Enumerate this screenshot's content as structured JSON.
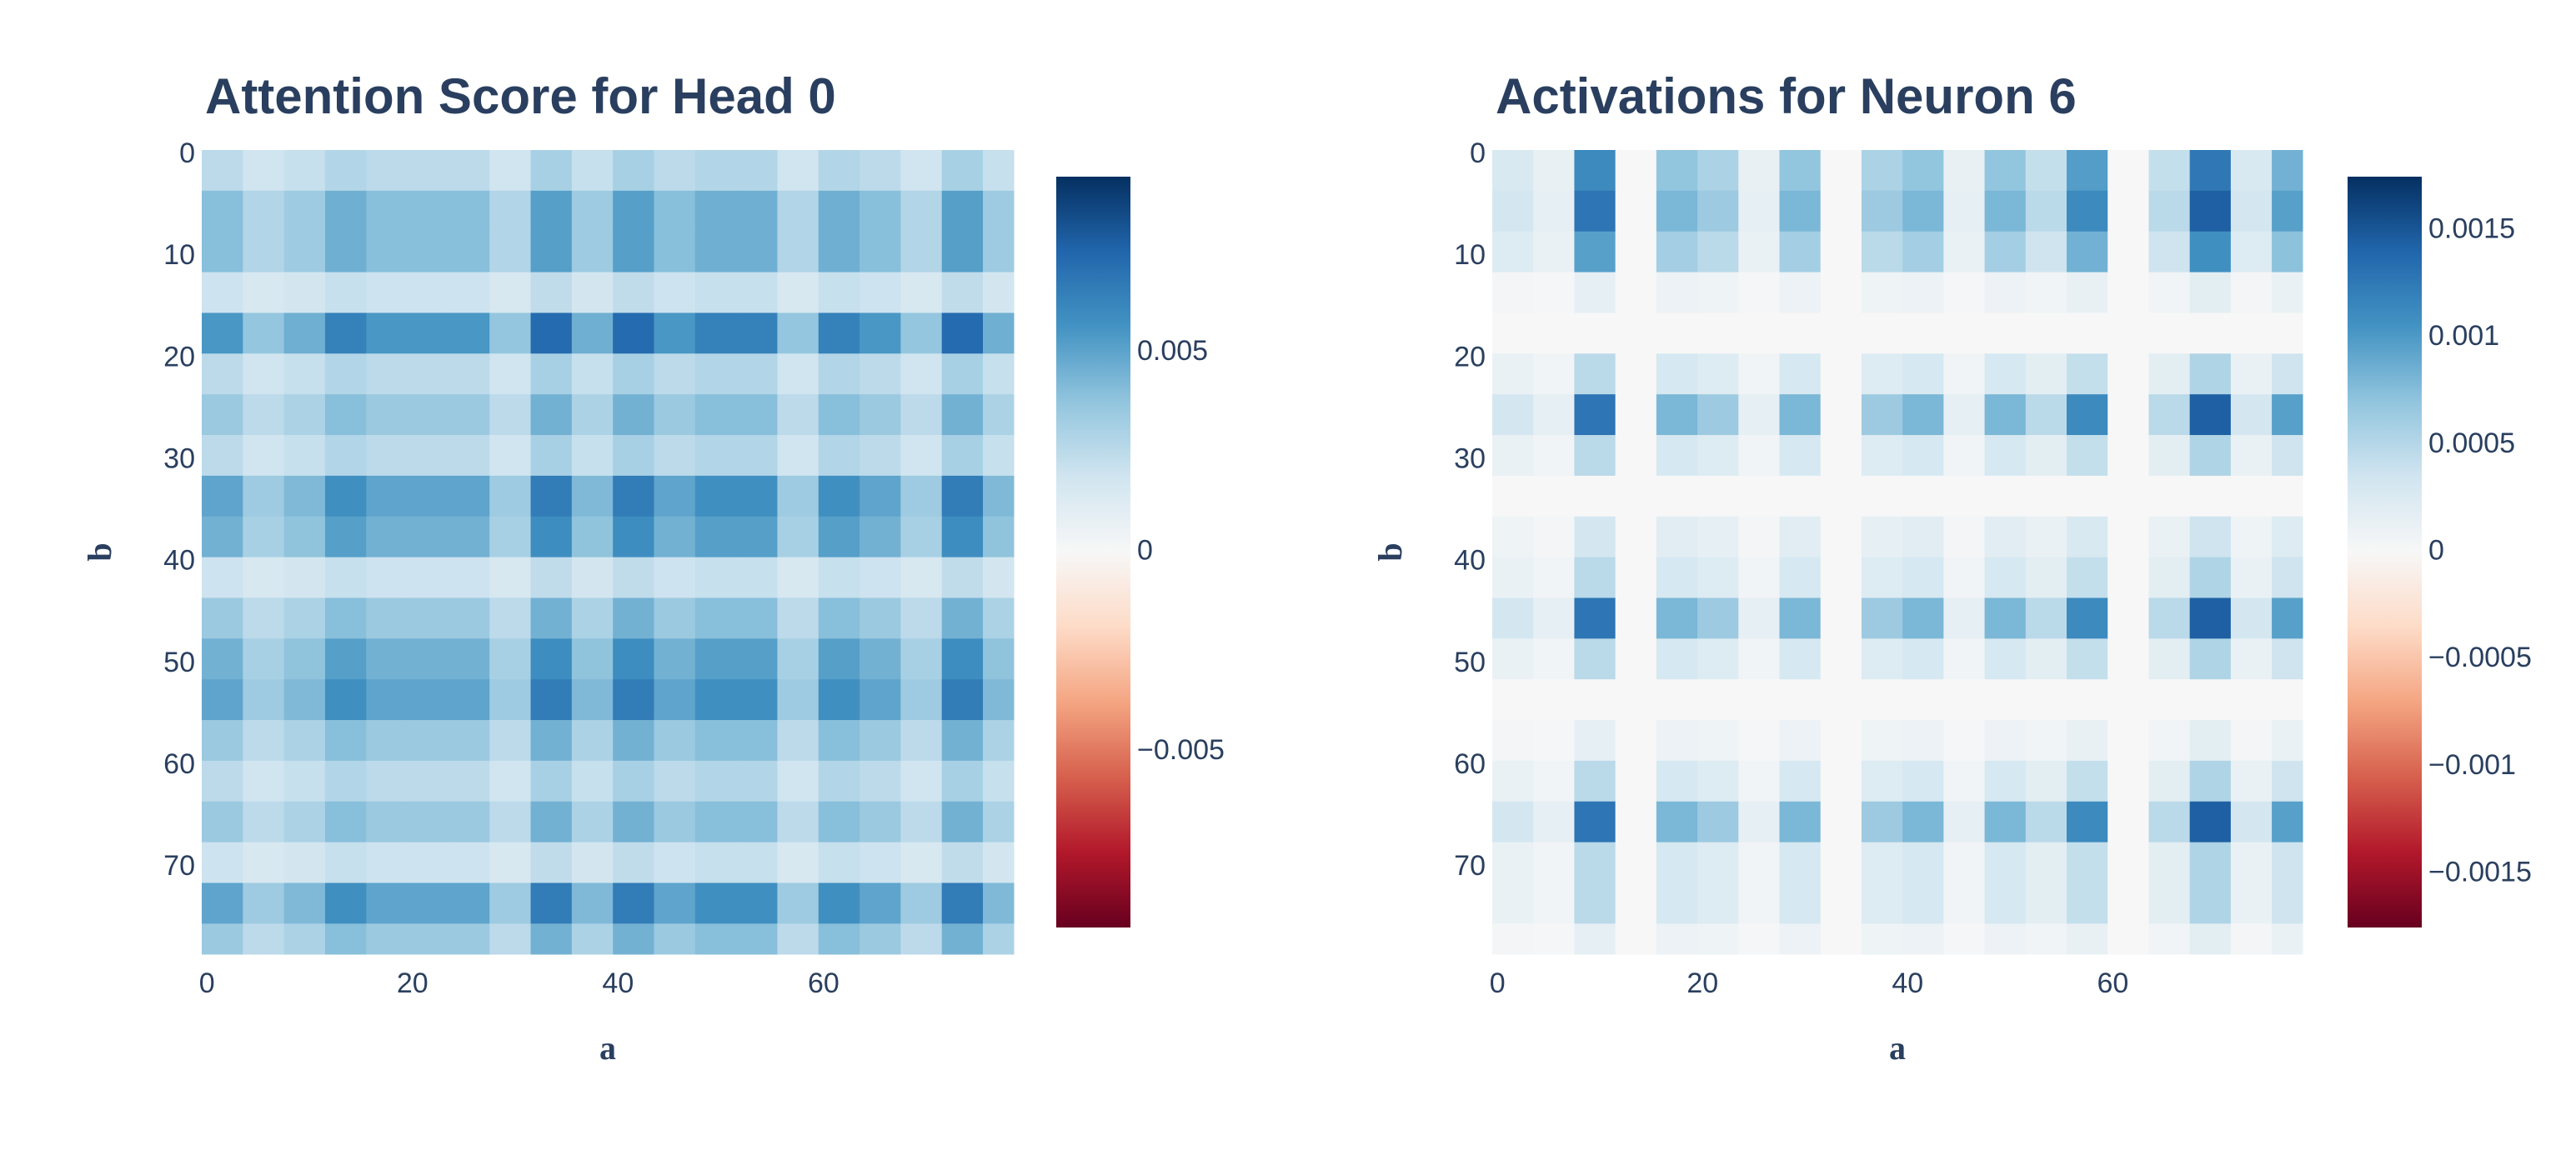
{
  "chart_data": [
    {
      "type": "heatmap",
      "title": "Attention Score for Head 0",
      "x_label": "a",
      "y_label": "b",
      "x": [
        0,
        4,
        8,
        12,
        16,
        20,
        24,
        28,
        32,
        36,
        40,
        44,
        48,
        52,
        56,
        60,
        64,
        68,
        72,
        76
      ],
      "y": [
        0,
        4,
        8,
        12,
        16,
        20,
        24,
        28,
        32,
        36,
        40,
        44,
        48,
        52,
        56,
        60,
        64,
        68,
        72,
        76
      ],
      "z": [
        [
          0.0025,
          0.0019,
          0.0022,
          0.0028,
          0.0025,
          0.0025,
          0.0025,
          0.0019,
          0.0031,
          0.0022,
          0.0031,
          0.0025,
          0.0028,
          0.0028,
          0.0019,
          0.0028,
          0.0025,
          0.0019,
          0.0031,
          0.0022
        ],
        [
          0.004,
          0.0028,
          0.0034,
          0.0046,
          0.004,
          0.004,
          0.004,
          0.0028,
          0.0052,
          0.0034,
          0.0052,
          0.004,
          0.0046,
          0.0046,
          0.0028,
          0.0046,
          0.004,
          0.0028,
          0.0052,
          0.0034
        ],
        [
          0.004,
          0.0028,
          0.0034,
          0.0046,
          0.004,
          0.004,
          0.004,
          0.0028,
          0.0052,
          0.0034,
          0.0052,
          0.004,
          0.0046,
          0.0046,
          0.0028,
          0.0046,
          0.004,
          0.0028,
          0.0052,
          0.0034
        ],
        [
          0.002,
          0.0016,
          0.0018,
          0.0022,
          0.002,
          0.002,
          0.002,
          0.0016,
          0.0024,
          0.0018,
          0.0024,
          0.002,
          0.0022,
          0.0022,
          0.0016,
          0.0022,
          0.002,
          0.0016,
          0.0024,
          0.0018
        ],
        [
          0.0055,
          0.0037,
          0.0046,
          0.0064,
          0.0055,
          0.0055,
          0.0055,
          0.0037,
          0.0073,
          0.0046,
          0.0073,
          0.0055,
          0.0064,
          0.0064,
          0.0037,
          0.0064,
          0.0055,
          0.0037,
          0.0073,
          0.0046
        ],
        [
          0.0025,
          0.0019,
          0.0022,
          0.0028,
          0.0025,
          0.0025,
          0.0025,
          0.0019,
          0.0031,
          0.0022,
          0.0031,
          0.0025,
          0.0028,
          0.0028,
          0.0019,
          0.0028,
          0.0025,
          0.0019,
          0.0031,
          0.0022
        ],
        [
          0.0035,
          0.0025,
          0.003,
          0.004,
          0.0035,
          0.0035,
          0.0035,
          0.0025,
          0.0045,
          0.003,
          0.0045,
          0.0035,
          0.004,
          0.004,
          0.0025,
          0.004,
          0.0035,
          0.0025,
          0.0045,
          0.003
        ],
        [
          0.0025,
          0.0019,
          0.0022,
          0.0028,
          0.0025,
          0.0025,
          0.0025,
          0.0019,
          0.0031,
          0.0022,
          0.0031,
          0.0025,
          0.0028,
          0.0028,
          0.0019,
          0.0028,
          0.0025,
          0.0019,
          0.0031,
          0.0022
        ],
        [
          0.005,
          0.0034,
          0.0042,
          0.0058,
          0.005,
          0.005,
          0.005,
          0.0034,
          0.0066,
          0.0042,
          0.0066,
          0.005,
          0.0058,
          0.0058,
          0.0034,
          0.0058,
          0.005,
          0.0034,
          0.0066,
          0.0042
        ],
        [
          0.0045,
          0.0031,
          0.0038,
          0.0052,
          0.0045,
          0.0045,
          0.0045,
          0.0031,
          0.0059,
          0.0038,
          0.0059,
          0.0045,
          0.0052,
          0.0052,
          0.0031,
          0.0052,
          0.0045,
          0.0031,
          0.0059,
          0.0038
        ],
        [
          0.002,
          0.0016,
          0.0018,
          0.0022,
          0.002,
          0.002,
          0.002,
          0.0016,
          0.0024,
          0.0018,
          0.0024,
          0.002,
          0.0022,
          0.0022,
          0.0016,
          0.0022,
          0.002,
          0.0016,
          0.0024,
          0.0018
        ],
        [
          0.0035,
          0.0025,
          0.003,
          0.004,
          0.0035,
          0.0035,
          0.0035,
          0.0025,
          0.0045,
          0.003,
          0.0045,
          0.0035,
          0.004,
          0.004,
          0.0025,
          0.004,
          0.0035,
          0.0025,
          0.0045,
          0.003
        ],
        [
          0.0045,
          0.0031,
          0.0038,
          0.0052,
          0.0045,
          0.0045,
          0.0045,
          0.0031,
          0.0059,
          0.0038,
          0.0059,
          0.0045,
          0.0052,
          0.0052,
          0.0031,
          0.0052,
          0.0045,
          0.0031,
          0.0059,
          0.0038
        ],
        [
          0.005,
          0.0034,
          0.0042,
          0.0058,
          0.005,
          0.005,
          0.005,
          0.0034,
          0.0066,
          0.0042,
          0.0066,
          0.005,
          0.0058,
          0.0058,
          0.0034,
          0.0058,
          0.005,
          0.0034,
          0.0066,
          0.0042
        ],
        [
          0.0035,
          0.0025,
          0.003,
          0.004,
          0.0035,
          0.0035,
          0.0035,
          0.0025,
          0.0045,
          0.003,
          0.0045,
          0.0035,
          0.004,
          0.004,
          0.0025,
          0.004,
          0.0035,
          0.0025,
          0.0045,
          0.003
        ],
        [
          0.0025,
          0.0019,
          0.0022,
          0.0028,
          0.0025,
          0.0025,
          0.0025,
          0.0019,
          0.0031,
          0.0022,
          0.0031,
          0.0025,
          0.0028,
          0.0028,
          0.0019,
          0.0028,
          0.0025,
          0.0019,
          0.0031,
          0.0022
        ],
        [
          0.0035,
          0.0025,
          0.003,
          0.004,
          0.0035,
          0.0035,
          0.0035,
          0.0025,
          0.0045,
          0.003,
          0.0045,
          0.0035,
          0.004,
          0.004,
          0.0025,
          0.004,
          0.0035,
          0.0025,
          0.0045,
          0.003
        ],
        [
          0.002,
          0.0016,
          0.0018,
          0.0022,
          0.002,
          0.002,
          0.002,
          0.0016,
          0.0024,
          0.0018,
          0.0024,
          0.002,
          0.0022,
          0.0022,
          0.0016,
          0.0022,
          0.002,
          0.0016,
          0.0024,
          0.0018
        ],
        [
          0.005,
          0.0034,
          0.0042,
          0.0058,
          0.005,
          0.005,
          0.005,
          0.0034,
          0.0066,
          0.0042,
          0.0066,
          0.005,
          0.0058,
          0.0058,
          0.0034,
          0.0058,
          0.005,
          0.0034,
          0.0066,
          0.0042
        ],
        [
          0.0035,
          0.0025,
          0.003,
          0.004,
          0.0035,
          0.0035,
          0.0035,
          0.0025,
          0.0045,
          0.003,
          0.0045,
          0.0035,
          0.004,
          0.004,
          0.0025,
          0.004,
          0.0035,
          0.0025,
          0.0045,
          0.003
        ]
      ],
      "xlim": [
        -0.5,
        78.5
      ],
      "ylim": [
        78.5,
        -0.5
      ],
      "xticks": [
        0,
        20,
        40,
        60
      ],
      "yticks": [
        0,
        10,
        20,
        30,
        40,
        50,
        60,
        70
      ],
      "zlim": [
        -0.0094,
        0.0094
      ],
      "zticks": [
        0.005,
        0,
        {
          "value": -0.005,
          "label": "−0.005"
        }
      ],
      "colorscale": [
        "#67001f",
        "#b2182b",
        "#d6604d",
        "#f4a582",
        "#fddbc7",
        "#f7f7f7",
        "#d1e5f0",
        "#92c5de",
        "#4393c3",
        "#2166ac",
        "#053061"
      ]
    },
    {
      "type": "heatmap",
      "title": "Activations for Neuron 6",
      "x_label": "a",
      "y_label": "b",
      "x": [
        0,
        4,
        8,
        12,
        16,
        20,
        24,
        28,
        32,
        36,
        40,
        44,
        48,
        52,
        56,
        60,
        64,
        68,
        72,
        76
      ],
      "y": [
        0,
        4,
        8,
        12,
        16,
        20,
        24,
        28,
        32,
        36,
        40,
        44,
        48,
        52,
        56,
        60,
        64,
        68,
        72,
        76
      ],
      "z": [
        [
          0.00028,
          0.00014,
          0.00112,
          0,
          0.0007,
          0.00056,
          0.00014,
          0.0007,
          0,
          0.00056,
          0.0007,
          0.00014,
          0.0007,
          0.00042,
          0.00098,
          0,
          0.00042,
          0.00126,
          0.00028,
          0.00084
        ],
        [
          0.00032,
          0.00016,
          0.00128,
          0,
          0.0008,
          0.00064,
          0.00016,
          0.0008,
          0,
          0.00064,
          0.0008,
          0.00016,
          0.0008,
          0.00048,
          0.00112,
          0,
          0.00048,
          0.00144,
          0.00032,
          0.00096
        ],
        [
          0.00024,
          0.00012,
          0.00096,
          0,
          0.0006,
          0.00048,
          0.00012,
          0.0006,
          0,
          0.00048,
          0.0006,
          0.00012,
          0.0006,
          0.00036,
          0.00084,
          0,
          0.00036,
          0.00108,
          0.00024,
          0.00072
        ],
        [
          4e-05,
          2e-05,
          0.00016,
          0,
          0.0001,
          8e-05,
          2e-05,
          0.0001,
          0,
          8e-05,
          0.0001,
          2e-05,
          0.0001,
          6e-05,
          0.00014,
          0,
          6e-05,
          0.00018,
          4e-05,
          0.00012
        ],
        [
          0,
          0,
          0,
          0,
          0,
          0,
          0,
          0,
          0,
          0,
          0,
          0,
          0,
          0,
          0,
          0,
          0,
          0,
          0,
          0
        ],
        [
          0.00012,
          6e-05,
          0.00048,
          0,
          0.0003,
          0.00024,
          6e-05,
          0.0003,
          0,
          0.00024,
          0.0003,
          6e-05,
          0.0003,
          0.00018,
          0.00042,
          0,
          0.00018,
          0.00054,
          0.00012,
          0.00036
        ],
        [
          0.00032,
          0.00016,
          0.00128,
          0,
          0.0008,
          0.00064,
          0.00016,
          0.0008,
          0,
          0.00064,
          0.0008,
          0.00016,
          0.0008,
          0.00048,
          0.00112,
          0,
          0.00048,
          0.00144,
          0.00032,
          0.00096
        ],
        [
          0.00012,
          6e-05,
          0.00048,
          0,
          0.0003,
          0.00024,
          6e-05,
          0.0003,
          0,
          0.00024,
          0.0003,
          6e-05,
          0.0003,
          0.00018,
          0.00042,
          0,
          0.00018,
          0.00054,
          0.00012,
          0.00036
        ],
        [
          0,
          0,
          0,
          0,
          0,
          0,
          0,
          0,
          0,
          0,
          0,
          0,
          0,
          0,
          0,
          0,
          0,
          0,
          0,
          0
        ],
        [
          8e-05,
          4e-05,
          0.00032,
          0,
          0.0002,
          0.00016,
          4e-05,
          0.0002,
          0,
          0.00016,
          0.0002,
          4e-05,
          0.0002,
          0.00012,
          0.00028,
          0,
          0.00012,
          0.00036,
          8e-05,
          0.00024
        ],
        [
          0.00012,
          6e-05,
          0.00048,
          0,
          0.0003,
          0.00024,
          6e-05,
          0.0003,
          0,
          0.00024,
          0.0003,
          6e-05,
          0.0003,
          0.00018,
          0.00042,
          0,
          0.00018,
          0.00054,
          0.00012,
          0.00036
        ],
        [
          0.00032,
          0.00016,
          0.00128,
          0,
          0.0008,
          0.00064,
          0.00016,
          0.0008,
          0,
          0.00064,
          0.0008,
          0.00016,
          0.0008,
          0.00048,
          0.00112,
          0,
          0.00048,
          0.00144,
          0.00032,
          0.00096
        ],
        [
          0.00012,
          6e-05,
          0.00048,
          0,
          0.0003,
          0.00024,
          6e-05,
          0.0003,
          0,
          0.00024,
          0.0003,
          6e-05,
          0.0003,
          0.00018,
          0.00042,
          0,
          0.00018,
          0.00054,
          0.00012,
          0.00036
        ],
        [
          0,
          0,
          0,
          0,
          0,
          0,
          0,
          0,
          0,
          0,
          0,
          0,
          0,
          0,
          0,
          0,
          0,
          0,
          0,
          0
        ],
        [
          4e-05,
          2e-05,
          0.00016,
          0,
          0.0001,
          8e-05,
          2e-05,
          0.0001,
          0,
          8e-05,
          0.0001,
          2e-05,
          0.0001,
          6e-05,
          0.00014,
          0,
          6e-05,
          0.00018,
          4e-05,
          0.00012
        ],
        [
          0.00012,
          6e-05,
          0.00048,
          0,
          0.0003,
          0.00024,
          6e-05,
          0.0003,
          0,
          0.00024,
          0.0003,
          6e-05,
          0.0003,
          0.00018,
          0.00042,
          0,
          0.00018,
          0.00054,
          0.00012,
          0.00036
        ],
        [
          0.00032,
          0.00016,
          0.00128,
          0,
          0.0008,
          0.00064,
          0.00016,
          0.0008,
          0,
          0.00064,
          0.0008,
          0.00016,
          0.0008,
          0.00048,
          0.00112,
          0,
          0.00048,
          0.00144,
          0.00032,
          0.00096
        ],
        [
          0.00012,
          6e-05,
          0.00048,
          0,
          0.0003,
          0.00024,
          6e-05,
          0.0003,
          0,
          0.00024,
          0.0003,
          6e-05,
          0.0003,
          0.00018,
          0.00042,
          0,
          0.00018,
          0.00054,
          0.00012,
          0.00036
        ],
        [
          0.00012,
          6e-05,
          0.00048,
          0,
          0.0003,
          0.00024,
          6e-05,
          0.0003,
          0,
          0.00024,
          0.0003,
          6e-05,
          0.0003,
          0.00018,
          0.00042,
          0,
          0.00018,
          0.00054,
          0.00012,
          0.00036
        ],
        [
          4e-05,
          2e-05,
          0.00016,
          0,
          0.0001,
          8e-05,
          2e-05,
          0.0001,
          0,
          8e-05,
          0.0001,
          2e-05,
          0.0001,
          6e-05,
          0.00014,
          0,
          6e-05,
          0.00018,
          4e-05,
          0.00012
        ]
      ],
      "xlim": [
        -0.5,
        78.5
      ],
      "ylim": [
        78.5,
        -0.5
      ],
      "xticks": [
        0,
        20,
        40,
        60
      ],
      "yticks": [
        0,
        10,
        20,
        30,
        40,
        50,
        60,
        70
      ],
      "zlim": [
        -0.00175,
        0.00175
      ],
      "zticks": [
        0.0015,
        0.001,
        0.0005,
        0,
        {
          "value": -0.0005,
          "label": "−0.0005"
        },
        {
          "value": -0.001,
          "label": "−0.001"
        },
        {
          "value": -0.0015,
          "label": "−0.0015"
        }
      ],
      "colorscale": [
        "#67001f",
        "#b2182b",
        "#d6604d",
        "#f4a582",
        "#fddbc7",
        "#f7f7f7",
        "#d1e5f0",
        "#92c5de",
        "#4393c3",
        "#2166ac",
        "#053061"
      ]
    }
  ]
}
